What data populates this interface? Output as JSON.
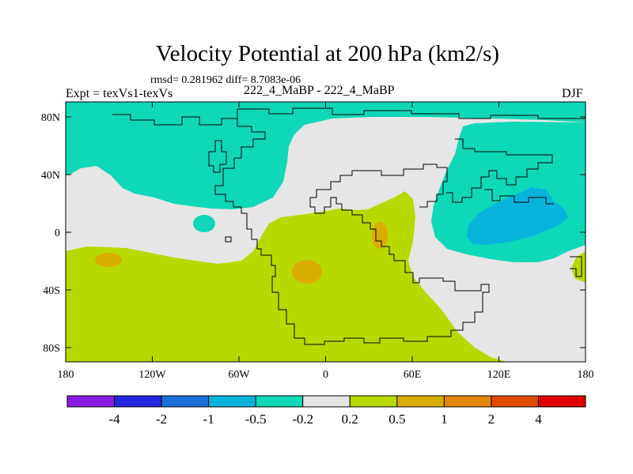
{
  "header": {
    "title": "Velocity Potential at 200 hPa (km2/s)",
    "stats": "rmsd= 0.281962 diff= 8.7083e-06",
    "experiment": "Expt = texVs1-texVs",
    "cases": "222_4_MaBP - 222_4_MaBP",
    "season": "DJF"
  },
  "map": {
    "projection": "cylindrical-equidistant",
    "lon_range": [
      -180,
      180
    ],
    "lat_range": [
      -90,
      90
    ],
    "x_ticks": [
      "180",
      "120W",
      "60W",
      "0",
      "60E",
      "120E",
      "180"
    ],
    "y_ticks": [
      "80N",
      "40N",
      "0",
      "40S",
      "80S"
    ],
    "palette": {
      "neg4": "#8a1be0",
      "neg2": "#2626e0",
      "neg1": "#1a6fd9",
      "neg05": "#08b4dc",
      "neg02": "#0ed8b8",
      "zero": "#e6e6e6",
      "pos02": "#b7d900",
      "pos05": "#d9ad00",
      "pos1": "#e3870c",
      "pos2": "#e24a00",
      "pos4": "#e00000"
    }
  },
  "colorbar": {
    "labels": [
      "-4",
      "-2",
      "-1",
      "-0.5",
      "-0.2",
      "0.2",
      "0.5",
      "1",
      "2",
      "4"
    ],
    "colors": [
      "#8a1be0",
      "#2626e0",
      "#1a6fd9",
      "#08b4dc",
      "#0ed8b8",
      "#e6e6e6",
      "#b7d900",
      "#d9ad00",
      "#e3870c",
      "#e24a00",
      "#e00000"
    ]
  }
}
